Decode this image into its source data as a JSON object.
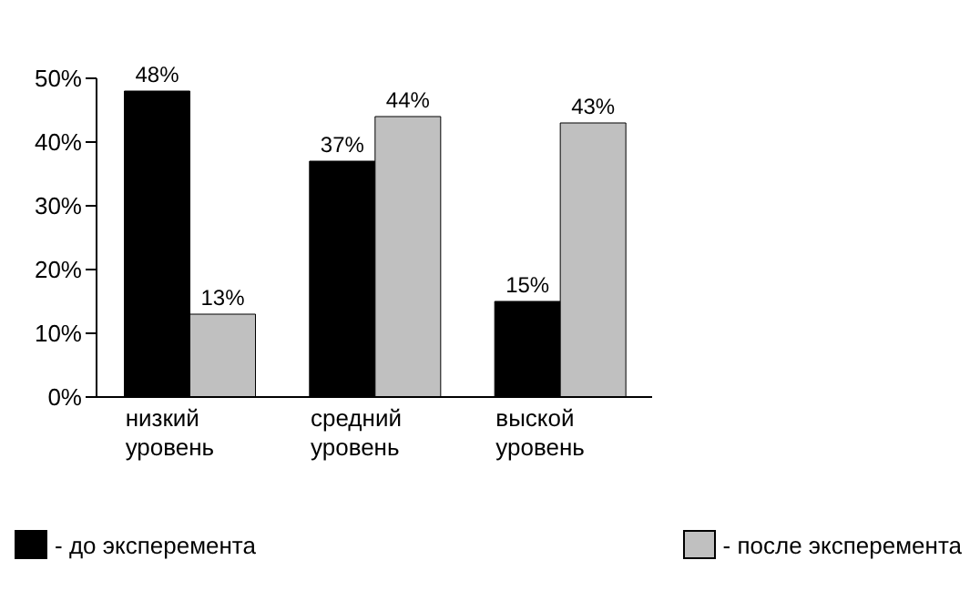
{
  "chart_data": {
    "type": "bar",
    "categories": [
      "низкий уровень",
      "средний уровень",
      "выской уровень"
    ],
    "series": [
      {
        "name": "- до эксперемента",
        "color": "#000000",
        "values": [
          48,
          37,
          15
        ],
        "value_labels": [
          "48%",
          "37%",
          "15%"
        ]
      },
      {
        "name": "- после эксперемента",
        "color": "#c0c0c0",
        "values": [
          13,
          44,
          43
        ],
        "value_labels": [
          "13%",
          "44%",
          "43%"
        ]
      }
    ],
    "ylim": [
      0,
      50
    ],
    "yticks": [
      {
        "value": 0,
        "label": "0%"
      },
      {
        "value": 10,
        "label": "10%"
      },
      {
        "value": 20,
        "label": "20%"
      },
      {
        "value": 30,
        "label": "30%"
      },
      {
        "value": 40,
        "label": "40%"
      },
      {
        "value": 50,
        "label": "50%"
      }
    ],
    "grid": false,
    "legend": "bottom"
  }
}
